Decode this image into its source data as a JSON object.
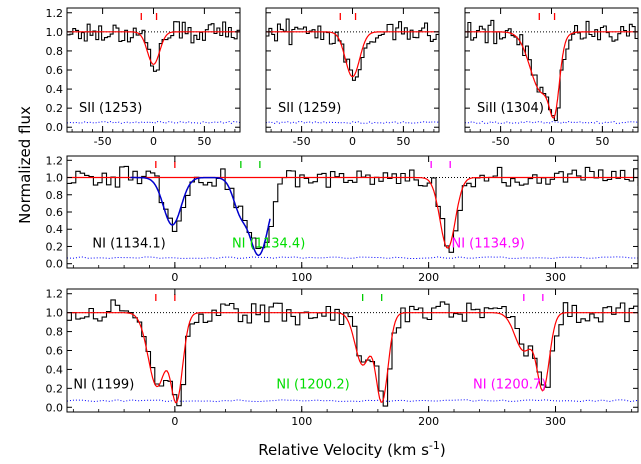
{
  "figure": {
    "ylabel": "Normalized flux",
    "xlabel": "Relative Velocity (km s",
    "xlabel_sup": "-1",
    "xlabel_close": ")"
  },
  "colors": {
    "data": "#000000",
    "model": "#ff0000",
    "model_alt": "#0000cc",
    "continuum": "#000000",
    "error": "#0000ff",
    "tick_red": "#ff0000",
    "tick_green": "#00cc00",
    "tick_magenta": "#ff00ff",
    "label_black": "#000000",
    "label_green": "#00dd00",
    "label_magenta": "#ff00ff"
  },
  "chart_data": [
    {
      "type": "line",
      "panel": "top-left",
      "label": "SII (1253)",
      "xlim": [
        -85,
        85
      ],
      "ylim": [
        -0.05,
        1.25
      ],
      "xticks": [
        "-50",
        "0",
        "50"
      ],
      "xtick_values": [
        -50,
        0,
        50
      ],
      "yticks": [
        "0.0",
        "0.2",
        "0.4",
        "0.6",
        "0.8",
        "1.0",
        "1.2"
      ],
      "ytick_values": [
        0.0,
        0.2,
        0.4,
        0.6,
        0.8,
        1.0,
        1.2
      ],
      "component_ticks": [
        {
          "x": -12,
          "color": "red"
        },
        {
          "x": 3,
          "color": "red"
        }
      ],
      "absorbers": [
        {
          "v": 0,
          "depth": 0.34,
          "sigma": 6
        }
      ],
      "error_level": 0.05
    },
    {
      "type": "line",
      "panel": "top-middle",
      "label": "SII (1259)",
      "xlim": [
        -85,
        85
      ],
      "ylim": [
        -0.05,
        1.25
      ],
      "xticks": [
        "-50",
        "0",
        "50"
      ],
      "xtick_values": [
        -50,
        0,
        50
      ],
      "yticks": [],
      "ytick_values": [
        0.0,
        0.2,
        0.4,
        0.6,
        0.8,
        1.0,
        1.2
      ],
      "component_ticks": [
        {
          "x": -12,
          "color": "red"
        },
        {
          "x": 3,
          "color": "red"
        }
      ],
      "absorbers": [
        {
          "v": 0,
          "depth": 0.47,
          "sigma": 7
        }
      ],
      "error_level": 0.05
    },
    {
      "type": "line",
      "panel": "top-right",
      "label": "SiII (1304)",
      "xlim": [
        -85,
        85
      ],
      "ylim": [
        -0.05,
        1.25
      ],
      "xticks": [
        "-50",
        "0",
        "50"
      ],
      "xtick_values": [
        -50,
        0,
        50
      ],
      "yticks": [],
      "ytick_values": [
        0.0,
        0.2,
        0.4,
        0.6,
        0.8,
        1.0,
        1.2
      ],
      "component_ticks": [
        {
          "x": -12,
          "color": "red"
        },
        {
          "x": 3,
          "color": "red"
        }
      ],
      "absorbers": [
        {
          "v": -10,
          "depth": 0.62,
          "sigma": 11
        },
        {
          "v": 2,
          "depth": 0.85,
          "sigma": 5
        }
      ],
      "error_level": 0.05
    },
    {
      "type": "line",
      "panel": "middle",
      "xlim": [
        -85,
        365
      ],
      "ylim": [
        -0.05,
        1.25
      ],
      "xticks": [
        "0",
        "100",
        "200",
        "300"
      ],
      "xtick_values": [
        0,
        100,
        200,
        300
      ],
      "yticks": [
        "0.0",
        "0.2",
        "0.4",
        "0.6",
        "0.8",
        "1.0",
        "1.2"
      ],
      "ytick_values": [
        0.0,
        0.2,
        0.4,
        0.6,
        0.8,
        1.0,
        1.2
      ],
      "component_ticks": [
        {
          "x": -15,
          "color": "red"
        },
        {
          "x": 0,
          "color": "red"
        },
        {
          "x": 52,
          "color": "green"
        },
        {
          "x": 67,
          "color": "green"
        },
        {
          "x": 202,
          "color": "magenta"
        },
        {
          "x": 217,
          "color": "magenta"
        }
      ],
      "labels": [
        {
          "text": "NI (1134.1)",
          "x": -65,
          "y": 0.19,
          "color": "black"
        },
        {
          "text": "NI (1134.4)",
          "x": 45,
          "y": 0.19,
          "color": "green"
        },
        {
          "text": "NI (1134.9)",
          "x": 218,
          "y": 0.19,
          "color": "magenta"
        }
      ],
      "red_model_absorbers": [
        {
          "v": 215,
          "depth": 0.82,
          "sigma": 6
        }
      ],
      "blue_model_absorbers": [
        {
          "v": -2,
          "depth": 0.55,
          "sigma": 7
        },
        {
          "v": 66,
          "depth": 0.9,
          "sigma": 8
        },
        {
          "v": 52,
          "depth": 0.35,
          "sigma": 6
        }
      ],
      "error_level": 0.07
    },
    {
      "type": "line",
      "panel": "bottom",
      "xlim": [
        -85,
        365
      ],
      "ylim": [
        -0.05,
        1.25
      ],
      "xticks": [
        "0",
        "100",
        "200",
        "300"
      ],
      "xtick_values": [
        0,
        100,
        200,
        300
      ],
      "yticks": [
        "0.0",
        "0.2",
        "0.4",
        "0.6",
        "0.8",
        "1.0",
        "1.2"
      ],
      "ytick_values": [
        0.0,
        0.2,
        0.4,
        0.6,
        0.8,
        1.0,
        1.2
      ],
      "component_ticks": [
        {
          "x": -15,
          "color": "red"
        },
        {
          "x": 0,
          "color": "red"
        },
        {
          "x": 148,
          "color": "green"
        },
        {
          "x": 163,
          "color": "green"
        },
        {
          "x": 275,
          "color": "magenta"
        },
        {
          "x": 290,
          "color": "magenta"
        }
      ],
      "labels": [
        {
          "text": "NI (1199)",
          "x": -80,
          "y": 0.2,
          "color": "black"
        },
        {
          "text": "NI (1200.2)",
          "x": 80,
          "y": 0.2,
          "color": "green"
        },
        {
          "text": "NI (1200.7)",
          "x": 235,
          "y": 0.2,
          "color": "magenta"
        }
      ],
      "absorbers": [
        {
          "v": -14,
          "depth": 0.78,
          "sigma": 7
        },
        {
          "v": 1,
          "depth": 0.95,
          "sigma": 5
        },
        {
          "v": 148,
          "depth": 0.55,
          "sigma": 6
        },
        {
          "v": 163,
          "depth": 0.95,
          "sigma": 5
        },
        {
          "v": 275,
          "depth": 0.4,
          "sigma": 7
        },
        {
          "v": 290,
          "depth": 0.82,
          "sigma": 5
        }
      ],
      "error_level": 0.07
    }
  ]
}
